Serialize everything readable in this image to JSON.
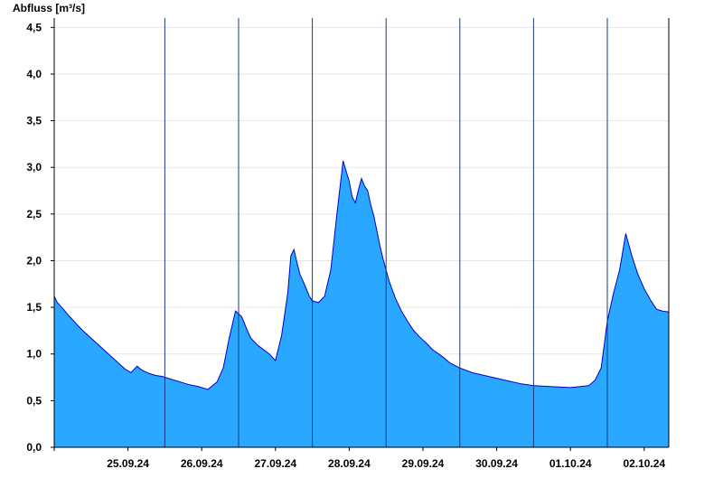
{
  "chart_data": {
    "type": "area",
    "ylabel": "Abfluss [m³/s]",
    "ylim": [
      0,
      4.6
    ],
    "yticks": [
      {
        "value": 0,
        "label": "0,0"
      },
      {
        "value": 0.5,
        "label": "0,5"
      },
      {
        "value": 1.0,
        "label": "1,0"
      },
      {
        "value": 1.5,
        "label": "1,5"
      },
      {
        "value": 2.0,
        "label": "2,0"
      },
      {
        "value": 2.5,
        "label": "2,5"
      },
      {
        "value": 3.0,
        "label": "3,0"
      },
      {
        "value": 3.5,
        "label": "3,5"
      },
      {
        "value": 4.0,
        "label": "4,0"
      },
      {
        "value": 4.5,
        "label": "4,5"
      }
    ],
    "xlim": [
      "2024-09-24T12:00",
      "2024-10-02T20:00"
    ],
    "xticks": [
      {
        "x": "2024-09-25T12:00",
        "label": "25.09.24"
      },
      {
        "x": "2024-09-26T12:00",
        "label": "26.09.24"
      },
      {
        "x": "2024-09-27T12:00",
        "label": "27.09.24"
      },
      {
        "x": "2024-09-28T12:00",
        "label": "28.09.24"
      },
      {
        "x": "2024-09-29T12:00",
        "label": "29.09.24"
      },
      {
        "x": "2024-09-30T12:00",
        "label": "30.09.24"
      },
      {
        "x": "2024-10-01T12:00",
        "label": "01.10.24"
      },
      {
        "x": "2024-10-02T12:00",
        "label": "02.10.24"
      }
    ],
    "day_separators": [
      "2024-09-26T00:00",
      "2024-09-27T00:00",
      "2024-09-28T00:00",
      "2024-09-29T00:00",
      "2024-09-30T00:00",
      "2024-10-01T00:00",
      "2024-10-02T00:00"
    ],
    "grid": true,
    "colors": {
      "fill": "#2aa8ff",
      "line": "#0000cc",
      "grid": "#e6e6e6",
      "separator": "#1a3a7a",
      "axis": "#000000"
    },
    "series": [
      {
        "x": [
          "2024-09-24T12:00",
          "2024-09-24T13:00",
          "2024-09-24T15:00",
          "2024-09-24T17:00",
          "2024-09-24T19:00",
          "2024-09-24T21:00",
          "2024-09-24T23:00",
          "2024-09-25T01:00",
          "2024-09-25T03:00",
          "2024-09-25T05:00",
          "2024-09-25T07:00",
          "2024-09-25T09:00",
          "2024-09-25T11:00",
          "2024-09-25T13:00",
          "2024-09-25T15:00",
          "2024-09-25T16:00",
          "2024-09-25T17:00",
          "2024-09-25T19:00",
          "2024-09-25T21:00",
          "2024-09-25T23:00",
          "2024-09-26T02:00",
          "2024-09-26T05:00",
          "2024-09-26T08:00",
          "2024-09-26T11:00",
          "2024-09-26T14:00",
          "2024-09-26T17:00",
          "2024-09-26T19:00",
          "2024-09-26T21:00",
          "2024-09-26T23:00",
          "2024-09-27T01:00",
          "2024-09-27T02:00",
          "2024-09-27T03:00",
          "2024-09-27T04:00",
          "2024-09-27T06:00",
          "2024-09-27T08:00",
          "2024-09-27T10:00",
          "2024-09-27T12:00",
          "2024-09-27T14:00",
          "2024-09-27T16:00",
          "2024-09-27T17:00",
          "2024-09-27T18:00",
          "2024-09-27T19:00",
          "2024-09-27T20:00",
          "2024-09-27T21:00",
          "2024-09-27T22:00",
          "2024-09-27T23:00",
          "2024-09-28T00:00",
          "2024-09-28T02:00",
          "2024-09-28T04:00",
          "2024-09-28T06:00",
          "2024-09-28T08:00",
          "2024-09-28T10:00",
          "2024-09-28T12:00",
          "2024-09-28T13:00",
          "2024-09-28T14:00",
          "2024-09-28T15:00",
          "2024-09-28T16:00",
          "2024-09-28T17:00",
          "2024-09-28T18:00",
          "2024-09-28T19:00",
          "2024-09-28T20:00",
          "2024-09-28T21:00",
          "2024-09-28T22:00",
          "2024-09-28T23:00",
          "2024-09-29T00:00",
          "2024-09-29T01:00",
          "2024-09-29T03:00",
          "2024-09-29T05:00",
          "2024-09-29T07:00",
          "2024-09-29T09:00",
          "2024-09-29T11:00",
          "2024-09-29T13:00",
          "2024-09-29T15:00",
          "2024-09-29T18:00",
          "2024-09-29T21:00",
          "2024-09-30T00:00",
          "2024-09-30T04:00",
          "2024-09-30T08:00",
          "2024-09-30T12:00",
          "2024-09-30T16:00",
          "2024-09-30T20:00",
          "2024-10-01T00:00",
          "2024-10-01T06:00",
          "2024-10-01T12:00",
          "2024-10-01T18:00",
          "2024-10-01T20:00",
          "2024-10-01T22:00",
          "2024-10-02T00:00",
          "2024-10-02T02:00",
          "2024-10-02T04:00",
          "2024-10-02T06:00",
          "2024-10-02T08:00",
          "2024-10-02T10:00",
          "2024-10-02T12:00",
          "2024-10-02T14:00",
          "2024-10-02T16:00",
          "2024-10-02T18:00",
          "2024-10-02T20:00"
        ],
        "values": [
          1.62,
          1.55,
          1.48,
          1.4,
          1.33,
          1.26,
          1.2,
          1.14,
          1.08,
          1.02,
          0.96,
          0.9,
          0.84,
          0.8,
          0.87,
          0.84,
          0.82,
          0.79,
          0.77,
          0.76,
          0.73,
          0.7,
          0.67,
          0.65,
          0.62,
          0.7,
          0.85,
          1.18,
          1.46,
          1.4,
          1.32,
          1.24,
          1.17,
          1.1,
          1.05,
          1.0,
          0.93,
          1.2,
          1.65,
          2.05,
          2.12,
          1.98,
          1.85,
          1.78,
          1.7,
          1.62,
          1.57,
          1.55,
          1.62,
          1.9,
          2.5,
          3.07,
          2.85,
          2.68,
          2.62,
          2.76,
          2.88,
          2.8,
          2.75,
          2.6,
          2.48,
          2.32,
          2.16,
          2.02,
          1.9,
          1.78,
          1.6,
          1.46,
          1.35,
          1.25,
          1.18,
          1.12,
          1.05,
          0.98,
          0.9,
          0.85,
          0.8,
          0.77,
          0.74,
          0.71,
          0.68,
          0.66,
          0.65,
          0.64,
          0.66,
          0.72,
          0.85,
          1.35,
          1.65,
          1.9,
          2.29,
          2.05,
          1.85,
          1.7,
          1.58,
          1.48,
          1.46,
          1.45
        ]
      }
    ]
  }
}
